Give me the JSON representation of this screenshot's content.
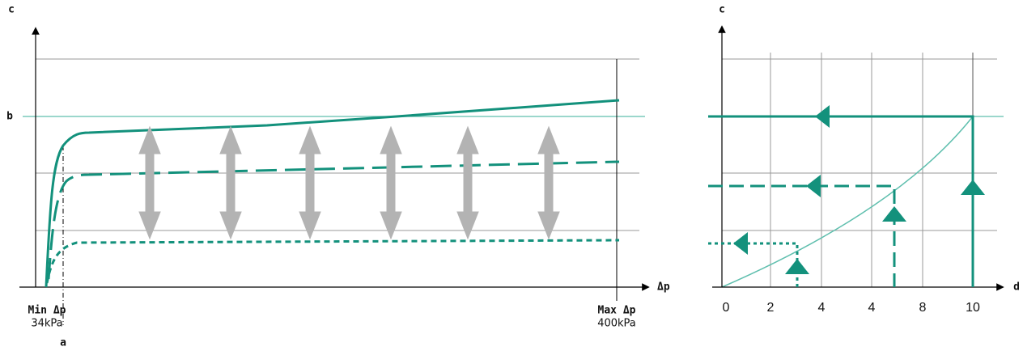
{
  "left": {
    "y_label": "c",
    "b_label": "b",
    "a_label": "a",
    "x_label": "Δp",
    "min": {
      "label": "Min Δp",
      "value": "34kPa"
    },
    "max": {
      "label": "Max Δp",
      "value": "400kPa"
    }
  },
  "right": {
    "y_label": "c",
    "x_label": "d",
    "ticks": [
      "0",
      "2",
      "4",
      "4",
      "8",
      "10"
    ]
  }
}
